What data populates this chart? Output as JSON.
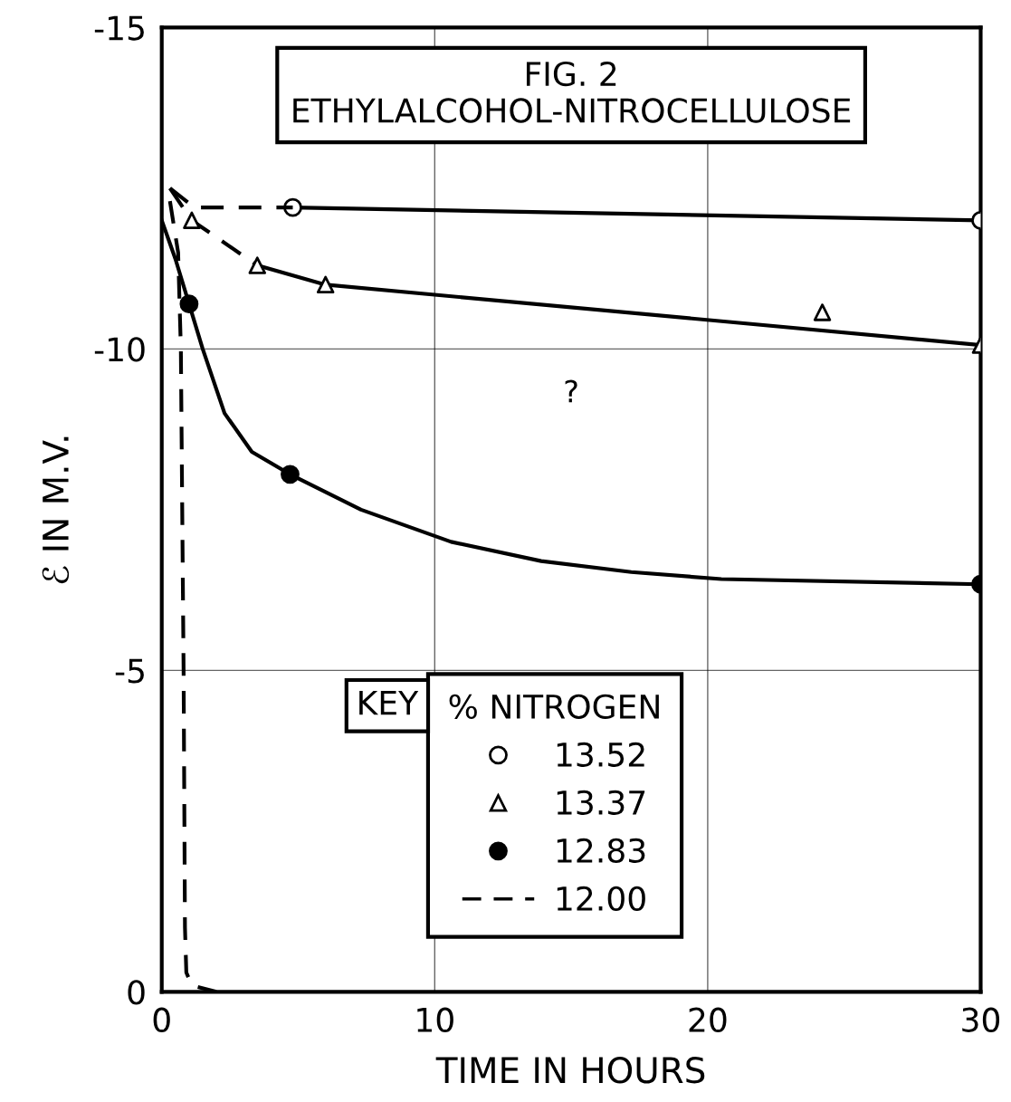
{
  "chart_data": {
    "type": "line",
    "title": "FIG. 2\nETHYLALCOHOL-NITROCELLULOSE",
    "xlabel": "TIME IN HOURS",
    "ylabel": "ℰ IN M.V.",
    "legend_title": "% NITROGEN",
    "xlim": [
      0,
      30
    ],
    "xticks": [
      0,
      10,
      20,
      30
    ],
    "ylim": [
      0,
      -15
    ],
    "yticks": [
      -15,
      -10,
      -5,
      0
    ],
    "grid": true,
    "legend": "bottom",
    "annotations": [
      "KEY",
      "?"
    ],
    "series": [
      {
        "name": "13.52",
        "color": "#000000",
        "marker": "circle",
        "line_style": "solid",
        "x": [
          4.8,
          30
        ],
        "values": [
          -12.2,
          -12.0
        ]
      },
      {
        "color": "#000000",
        "marker": "none",
        "line_style": "dashed",
        "x": [
          0.3,
          1.2,
          4.8
        ],
        "values": [
          -12.5,
          -12.2,
          -12.2
        ]
      },
      {
        "name": "13.37",
        "type": "scatter",
        "color": "#000000",
        "marker": "triangle",
        "x": [
          1.1,
          3.5,
          6,
          24.2,
          30
        ],
        "values": [
          -12.0,
          -11.3,
          -11.0,
          -10.57,
          -10.06
        ]
      },
      {
        "color": "#000000",
        "marker": "none",
        "line_style": "solid",
        "x": [
          3.5,
          6,
          30
        ],
        "values": [
          -11.3,
          -11.0,
          -10.06
        ]
      },
      {
        "color": "#000000",
        "marker": "none",
        "line_style": "dashed",
        "x": [
          0.3,
          1.1,
          3.5
        ],
        "values": [
          -12.5,
          -12.0,
          -11.3
        ]
      },
      {
        "name": "12.83",
        "type": "scatter",
        "color": "#000000",
        "marker": "circle",
        "colors": [
          "#000000",
          "#000000",
          "#000000"
        ],
        "x": [
          1.0,
          4.7,
          30
        ],
        "values": [
          -10.7,
          -8.05,
          -6.34
        ]
      },
      {
        "color": "#000000",
        "marker": "none",
        "line_style": "solid",
        "x": [
          0,
          0.5,
          1.0,
          1.5,
          2.3,
          3.3,
          4.7,
          7.3,
          10.6,
          13.9,
          17.2,
          20.5,
          30
        ],
        "values": [
          -12.0,
          -11.4,
          -10.7,
          -10.0,
          -9.0,
          -8.4,
          -8.05,
          -7.5,
          -7.0,
          -6.7,
          -6.53,
          -6.42,
          -6.34
        ]
      },
      {
        "name": "12.00",
        "color": "#000000",
        "marker": "none",
        "line_style": "dashed",
        "x": [
          0.3,
          0.6,
          0.7,
          0.8,
          0.85,
          0.9,
          1.1,
          2
        ],
        "values": [
          -12.3,
          -11.5,
          -10,
          -5,
          -1,
          -0.3,
          -0.1,
          0
        ]
      }
    ]
  }
}
